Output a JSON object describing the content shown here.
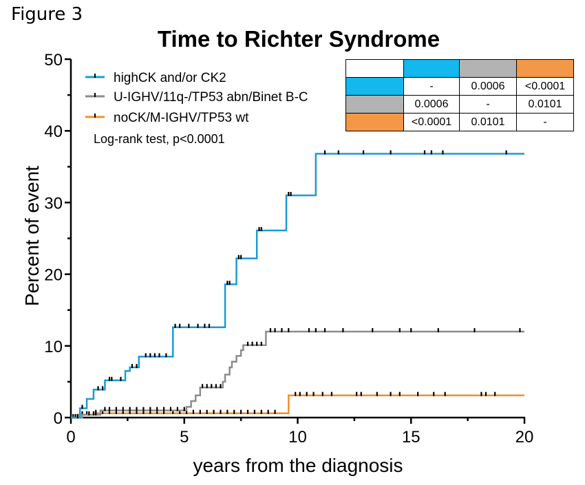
{
  "figure_label": "Figure 3",
  "chart_data": {
    "type": "line",
    "title": "Time to Richter Syndrome",
    "xlabel": "years from the diagnosis",
    "ylabel": "Percent of event",
    "xlim": [
      0,
      20
    ],
    "ylim": [
      0,
      50
    ],
    "xticks": [
      "0",
      "5",
      "10",
      "15",
      "20"
    ],
    "yticks": [
      "0",
      "10",
      "20",
      "30",
      "40",
      "50"
    ],
    "legend_position": "top-left",
    "annotation": "Log-rank test, p<0.0001",
    "series": [
      {
        "name": "highCK and/or CK2",
        "color": "#1a9ad6",
        "steps": [
          [
            0,
            0
          ],
          [
            0.4,
            1.3
          ],
          [
            0.7,
            2.6
          ],
          [
            1.0,
            3.9
          ],
          [
            1.5,
            5.2
          ],
          [
            2.0,
            5.2
          ],
          [
            2.4,
            6.5
          ],
          [
            2.6,
            7.0
          ],
          [
            3.0,
            8.5
          ],
          [
            4.5,
            12.6
          ],
          [
            6.8,
            18.6
          ],
          [
            7.3,
            22.2
          ],
          [
            8.2,
            26.1
          ],
          [
            9.5,
            31.0
          ],
          [
            10.8,
            36.8
          ],
          [
            20,
            36.8
          ]
        ],
        "censor_x": [
          0.3,
          0.5,
          1.2,
          1.4,
          1.7,
          1.8,
          2.2,
          2.7,
          2.9,
          3.3,
          3.5,
          3.7,
          3.9,
          4.2,
          4.6,
          4.8,
          5.2,
          5.6,
          5.9,
          6.1,
          6.9,
          7.0,
          7.4,
          7.5,
          8.3,
          8.4,
          9.6,
          9.7,
          11.2,
          11.8,
          12.9,
          14.1,
          15.6,
          15.9,
          16.4,
          19.2
        ]
      },
      {
        "name": "U-IGHV/11q-/TP53 abn/Binet B-C",
        "color": "#8c8c8c",
        "steps": [
          [
            0,
            0
          ],
          [
            0.5,
            0.4
          ],
          [
            1.3,
            1.0
          ],
          [
            5.1,
            1.5
          ],
          [
            5.3,
            2.3
          ],
          [
            5.5,
            3.1
          ],
          [
            5.7,
            4.2
          ],
          [
            6.7,
            5.0
          ],
          [
            6.8,
            6.0
          ],
          [
            7.0,
            7.0
          ],
          [
            7.1,
            7.8
          ],
          [
            7.3,
            8.6
          ],
          [
            7.5,
            9.4
          ],
          [
            7.6,
            10.1
          ],
          [
            8.6,
            12.0
          ],
          [
            20,
            12.0
          ]
        ],
        "censor_x": [
          0.2,
          0.4,
          0.8,
          1.0,
          1.1,
          1.5,
          1.7,
          2.0,
          2.3,
          2.6,
          2.9,
          3.2,
          3.5,
          3.8,
          4.1,
          4.4,
          4.7,
          5.0,
          5.8,
          6.0,
          6.2,
          6.4,
          6.6,
          7.8,
          8.0,
          8.2,
          8.4,
          8.8,
          9.0,
          9.3,
          9.6,
          10.5,
          10.8,
          11.2,
          12.0,
          13.3,
          14.5,
          15.0,
          16.2,
          17.8,
          19.8
        ]
      },
      {
        "name": "noCK/M-IGHV/TP53 wt",
        "color": "#f0902c",
        "steps": [
          [
            0,
            0
          ],
          [
            0.3,
            0.4
          ],
          [
            1.0,
            0.6
          ],
          [
            4.3,
            0.6
          ],
          [
            9.6,
            3.1
          ],
          [
            20,
            3.1
          ]
        ],
        "censor_x": [
          0.1,
          0.2,
          0.5,
          0.7,
          1.1,
          1.4,
          1.7,
          2.0,
          2.3,
          2.6,
          2.9,
          3.2,
          3.5,
          3.8,
          4.1,
          4.5,
          4.8,
          5.1,
          5.4,
          5.7,
          6.0,
          6.3,
          6.6,
          6.9,
          7.2,
          7.5,
          7.8,
          8.1,
          8.4,
          8.7,
          9.0,
          9.9,
          10.1,
          10.4,
          10.7,
          11.1,
          11.5,
          12.6,
          12.8,
          13.5,
          14.1,
          14.5,
          15.3,
          16.0,
          16.5,
          18.1,
          18.3,
          18.7
        ]
      }
    ]
  },
  "pvalue_table": {
    "header_colors": [
      "#ffffff",
      "#12b8ee",
      "#b3b3b3",
      "#f29846"
    ],
    "row_colors": [
      "#12b8ee",
      "#b3b3b3",
      "#f29846"
    ],
    "rows": [
      [
        "-",
        "0.0006",
        "<0.0001"
      ],
      [
        "0.0006",
        "-",
        "0.0101"
      ],
      [
        "<0.0001",
        "0.0101",
        "-"
      ]
    ]
  }
}
